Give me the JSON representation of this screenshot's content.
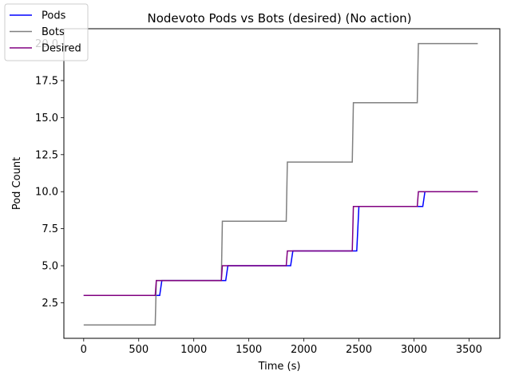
{
  "chart_data": {
    "type": "line",
    "title": "Nodevoto Pods vs Bots (desired)  (No action)",
    "xlabel": "Time (s)",
    "ylabel": "Pod Count",
    "xlim": [
      -180,
      3780
    ],
    "ylim": [
      0.1,
      21.0
    ],
    "xticks": [
      0,
      500,
      1000,
      1500,
      2000,
      2500,
      3000,
      3500
    ],
    "yticks": [
      2.5,
      5.0,
      7.5,
      10.0,
      12.5,
      15.0,
      17.5,
      20.0
    ],
    "ytick_labels": [
      "2.5",
      "5.0",
      "7.5",
      "10.0",
      "12.5",
      "15.0",
      "17.5",
      "20.0"
    ],
    "grid": false,
    "legend_position": "top-left",
    "series": [
      {
        "name": "Pods",
        "color": "#0000ff",
        "x": [
          0,
          690,
          710,
          1290,
          1310,
          1880,
          1900,
          2480,
          2500,
          3080,
          3100,
          3580
        ],
        "y": [
          3,
          3,
          4,
          4,
          5,
          5,
          6,
          6,
          9,
          9,
          10,
          10
        ]
      },
      {
        "name": "Bots",
        "color": "#808080",
        "x": [
          0,
          650,
          660,
          1250,
          1260,
          1840,
          1850,
          2440,
          2450,
          3030,
          3040,
          3580
        ],
        "y": [
          1,
          1,
          4,
          4,
          8,
          8,
          12,
          12,
          16,
          16,
          20,
          20
        ]
      },
      {
        "name": "Desired",
        "color": "#800080",
        "x": [
          0,
          650,
          660,
          1250,
          1260,
          1840,
          1850,
          2440,
          2450,
          3030,
          3040,
          3580
        ],
        "y": [
          3,
          3,
          4,
          4,
          5,
          5,
          6,
          6,
          9,
          9,
          10,
          10
        ]
      }
    ]
  }
}
